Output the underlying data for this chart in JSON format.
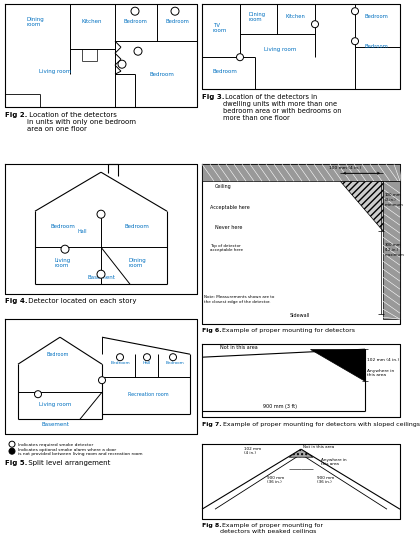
{
  "bg_color": "#ffffff",
  "blue": "#0070C0",
  "black": "#000000",
  "gray_hatch": "#999999",
  "fig_width": 404,
  "fig_height": 525
}
